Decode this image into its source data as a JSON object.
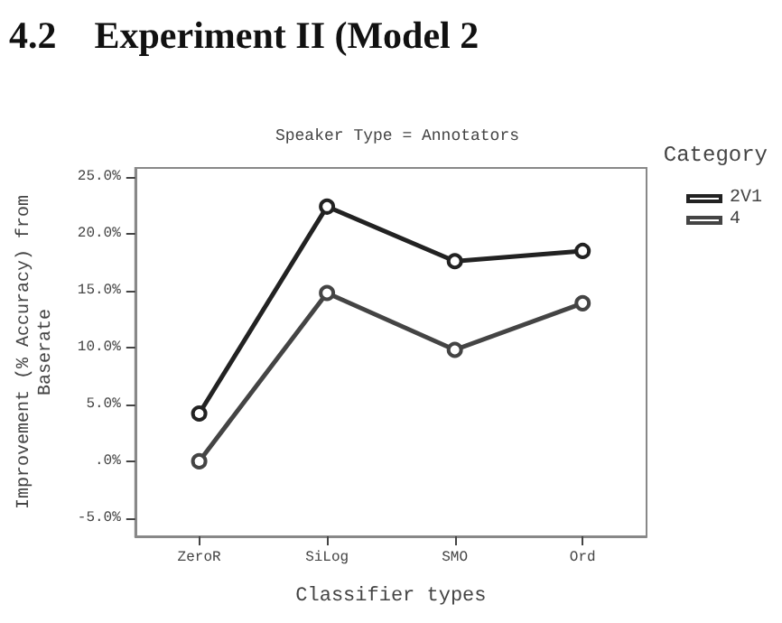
{
  "chart_data": {
    "type": "line",
    "title": "4.2    Experiment II (Model 2",
    "subtitle": "Speaker Type = Annotators",
    "xlabel": "Classifier types",
    "ylabel": "Improvement (% Accuracy) from\nBaserate",
    "legend_title": "Category",
    "categories": [
      "ZeroR",
      "SiLog",
      "SMO",
      "Ord"
    ],
    "series": [
      {
        "name": "2V1",
        "color": "#222222",
        "values": [
          4.2,
          22.4,
          17.6,
          18.5
        ]
      },
      {
        "name": "4",
        "color": "#444444",
        "values": [
          0,
          14.8,
          9.8,
          13.9
        ]
      }
    ],
    "ylim": [
      -6.6,
      25.8
    ],
    "yticks": [
      {
        "value": -5,
        "label": "-5.0%"
      },
      {
        "value": 0,
        "label": ".0%"
      },
      {
        "value": 5,
        "label": "5.0%"
      },
      {
        "value": 10,
        "label": "10.0%"
      },
      {
        "value": 15,
        "label": "15.0%"
      },
      {
        "value": 20,
        "label": "20.0%"
      },
      {
        "value": 25,
        "label": "25.0%"
      }
    ],
    "grid": false,
    "legend": "right",
    "marker": "circle",
    "line_style": "solid"
  }
}
